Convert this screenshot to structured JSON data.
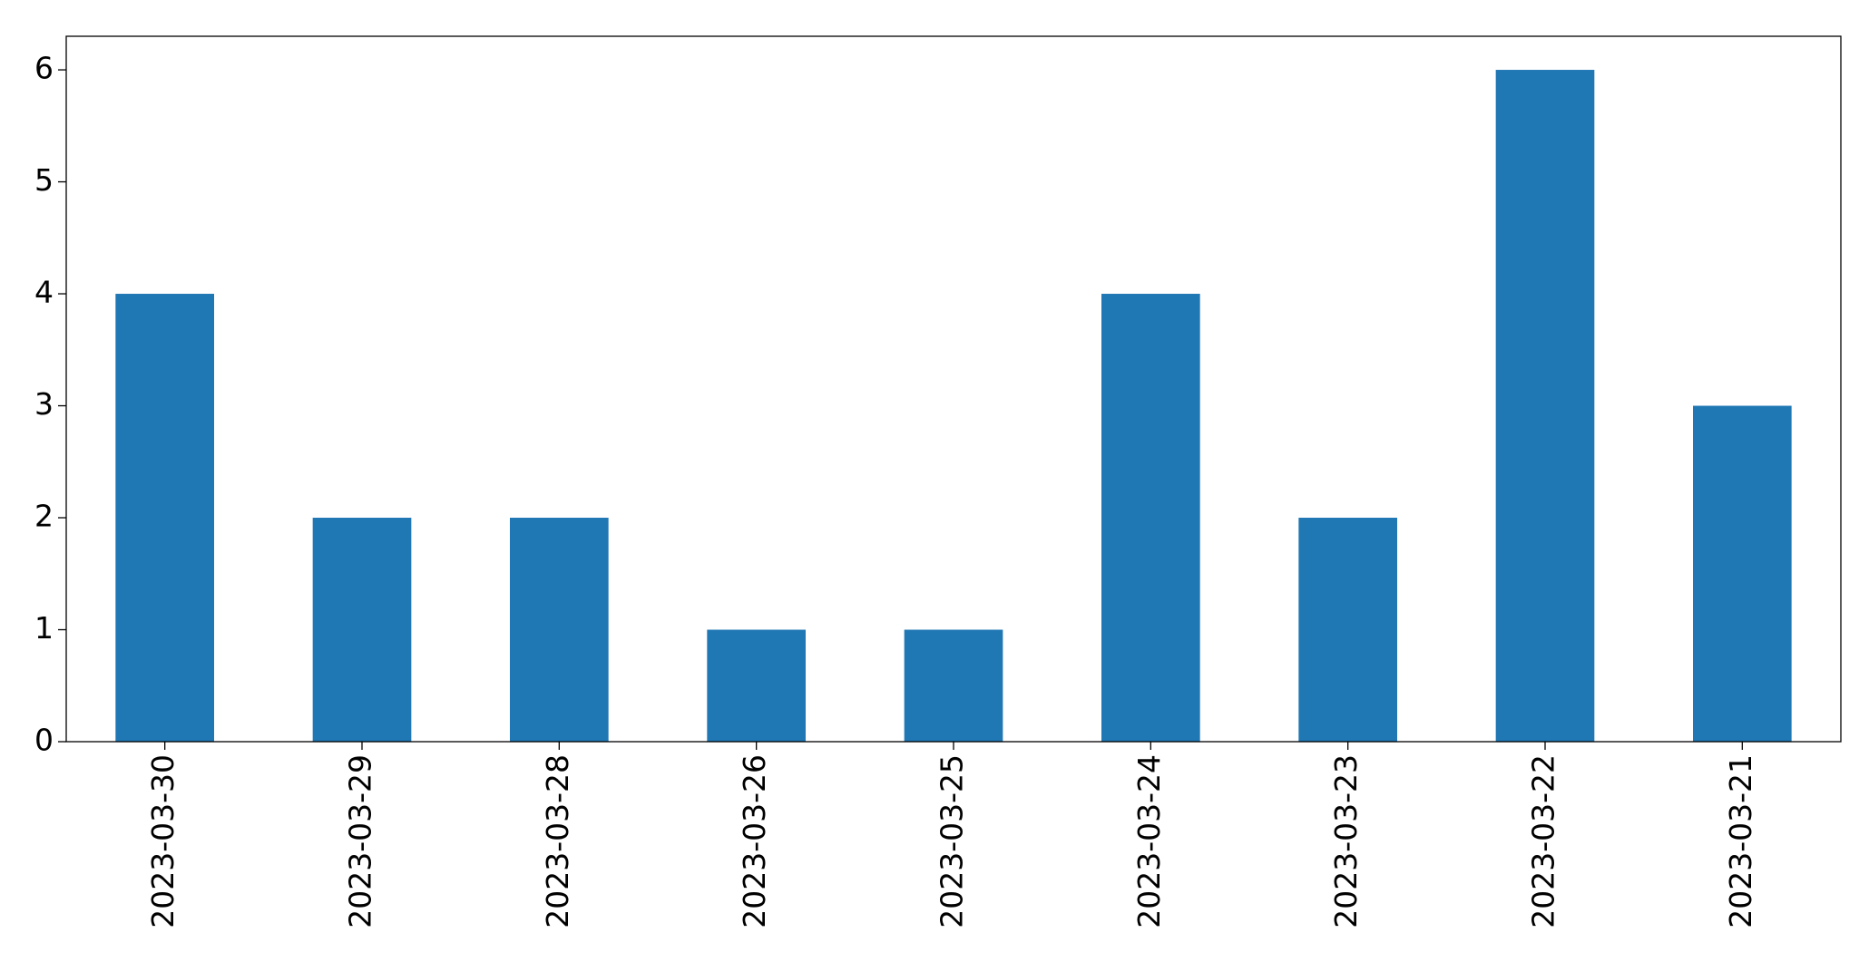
{
  "chart_data": {
    "type": "bar",
    "categories": [
      "2023-03-30",
      "2023-03-29",
      "2023-03-28",
      "2023-03-26",
      "2023-03-25",
      "2023-03-24",
      "2023-03-23",
      "2023-03-22",
      "2023-03-21"
    ],
    "values": [
      4,
      2,
      2,
      1,
      1,
      4,
      2,
      6,
      3
    ],
    "color": "#1f77b4",
    "ylim": [
      0,
      6.3
    ],
    "yticks": [
      0,
      1,
      2,
      3,
      4,
      5,
      6
    ],
    "grid": false
  }
}
